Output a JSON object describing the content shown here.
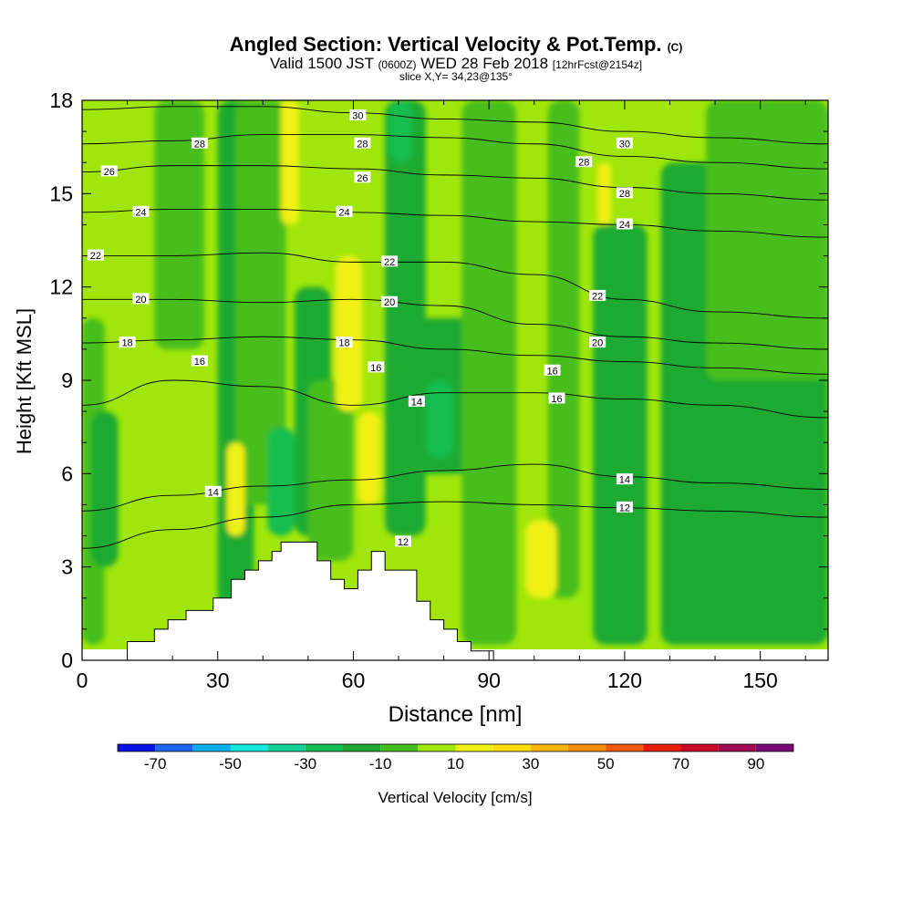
{
  "header": {
    "title": "Angled Section: Vertical Velocity & Pot.Temp.",
    "title_unit": "(C)",
    "valid_main": "Valid 1500 JST",
    "valid_utc": "(0600Z)",
    "valid_date": "WED 28 Feb 2018",
    "valid_fcst": "[12hrFcst@2154z]",
    "slice": "slice X,Y= 34,23@135°"
  },
  "chart_data": {
    "type": "heatmap",
    "xlabel": "Distance [nm]",
    "ylabel": "Height [Kft MSL]",
    "xlim": [
      0,
      165
    ],
    "ylim": [
      0,
      18
    ],
    "x_ticks": [
      0,
      30,
      60,
      90,
      120,
      150
    ],
    "y_ticks": [
      0,
      3,
      6,
      9,
      12,
      15,
      18
    ],
    "colorbar": {
      "label": "Vertical Velocity [cm/s]",
      "tick_labels": [
        -70,
        -50,
        -30,
        -10,
        10,
        30,
        50,
        70,
        90
      ],
      "bounds": [
        -80,
        -70,
        -60,
        -50,
        -40,
        -30,
        -20,
        -10,
        0,
        10,
        20,
        30,
        40,
        50,
        60,
        70,
        80,
        90,
        100
      ],
      "colors": [
        "#0a14e6",
        "#1e64f0",
        "#0aaff0",
        "#14e6dc",
        "#14d296",
        "#14be50",
        "#1eaa32",
        "#46be1e",
        "#a0e60a",
        "#f0f014",
        "#fadc0a",
        "#fab40a",
        "#f58c0a",
        "#f05a0a",
        "#e61e0a",
        "#c80a28",
        "#a00a50",
        "#780a78"
      ]
    },
    "background_velocity": 5,
    "velocity_cells": [
      {
        "x": [
          0,
          5
        ],
        "y": [
          0.5,
          11
        ],
        "v": -5
      },
      {
        "x": [
          2,
          8
        ],
        "y": [
          3,
          8
        ],
        "v": -15
      },
      {
        "x": [
          16,
          27
        ],
        "y": [
          10,
          18
        ],
        "v": -5
      },
      {
        "x": [
          30,
          38
        ],
        "y": [
          0.5,
          18
        ],
        "v": -15
      },
      {
        "x": [
          34,
          45
        ],
        "y": [
          5,
          18
        ],
        "v": -5
      },
      {
        "x": [
          41,
          47
        ],
        "y": [
          4,
          7.5
        ],
        "v": -25
      },
      {
        "x": [
          47,
          55
        ],
        "y": [
          4,
          12
        ],
        "v": -15
      },
      {
        "x": [
          50,
          60
        ],
        "y": [
          3.2,
          9
        ],
        "v": -5
      },
      {
        "x": [
          67,
          76
        ],
        "y": [
          4,
          18
        ],
        "v": -15
      },
      {
        "x": [
          68,
          73
        ],
        "y": [
          16,
          18
        ],
        "v": -25
      },
      {
        "x": [
          74,
          88
        ],
        "y": [
          6,
          11
        ],
        "v": -15
      },
      {
        "x": [
          76,
          82
        ],
        "y": [
          6.5,
          9
        ],
        "v": -25
      },
      {
        "x": [
          84,
          96
        ],
        "y": [
          0.5,
          18
        ],
        "v": -5
      },
      {
        "x": [
          103,
          110
        ],
        "y": [
          2,
          18
        ],
        "v": -5
      },
      {
        "x": [
          113,
          125
        ],
        "y": [
          0.5,
          14
        ],
        "v": -15
      },
      {
        "x": [
          128,
          165
        ],
        "y": [
          0.5,
          16
        ],
        "v": -15
      },
      {
        "x": [
          138,
          165
        ],
        "y": [
          9,
          18
        ],
        "v": -5
      },
      {
        "x": [
          32,
          36
        ],
        "y": [
          4,
          7
        ],
        "v": 15
      },
      {
        "x": [
          44,
          47
        ],
        "y": [
          15,
          18
        ],
        "v": 25
      },
      {
        "x": [
          44,
          48
        ],
        "y": [
          14,
          18
        ],
        "v": 15
      },
      {
        "x": [
          56,
          62
        ],
        "y": [
          8,
          13
        ],
        "v": 15
      },
      {
        "x": [
          61,
          66
        ],
        "y": [
          5,
          8
        ],
        "v": 15
      },
      {
        "x": [
          98,
          105
        ],
        "y": [
          2,
          4.5
        ],
        "v": 15
      },
      {
        "x": [
          114,
          117
        ],
        "y": [
          14,
          16
        ],
        "v": 15
      }
    ],
    "theta_contours": [
      {
        "level": 12,
        "x": [
          0,
          20,
          40,
          60,
          80,
          100,
          120,
          140,
          165
        ],
        "y": [
          3.6,
          4.2,
          4.6,
          5.0,
          5.1,
          5.0,
          4.9,
          4.8,
          4.6
        ]
      },
      {
        "level": 14,
        "x": [
          0,
          20,
          40,
          60,
          80,
          100,
          120,
          140,
          165
        ],
        "y": [
          4.8,
          5.3,
          5.6,
          5.8,
          6.1,
          6.3,
          5.9,
          5.7,
          5.5
        ]
      },
      {
        "level": 16,
        "x": [
          0,
          20,
          40,
          60,
          80,
          100,
          120,
          140,
          165
        ],
        "y": [
          8.2,
          9.0,
          8.8,
          8.2,
          8.6,
          8.6,
          8.4,
          8.2,
          7.8
        ]
      },
      {
        "level": 18,
        "x": [
          0,
          20,
          40,
          60,
          80,
          100,
          120,
          140,
          165
        ],
        "y": [
          10.2,
          10.3,
          10.4,
          10.3,
          10.0,
          9.8,
          9.6,
          9.4,
          9.2
        ]
      },
      {
        "level": 20,
        "x": [
          0,
          20,
          40,
          60,
          80,
          100,
          120,
          140,
          165
        ],
        "y": [
          11.6,
          11.6,
          11.5,
          11.6,
          11.4,
          10.8,
          10.4,
          10.2,
          10.0
        ]
      },
      {
        "level": 22,
        "x": [
          0,
          20,
          40,
          60,
          80,
          100,
          120,
          140,
          165
        ],
        "y": [
          13.0,
          13.0,
          13.1,
          12.8,
          12.8,
          12.4,
          11.6,
          11.2,
          11.0
        ]
      },
      {
        "level": 24,
        "x": [
          0,
          20,
          40,
          60,
          80,
          100,
          120,
          140,
          165
        ],
        "y": [
          14.4,
          14.5,
          14.5,
          14.4,
          14.3,
          14.1,
          14.0,
          13.8,
          13.6
        ]
      },
      {
        "level": 26,
        "x": [
          0,
          20,
          40,
          60,
          80,
          100,
          120,
          140,
          165
        ],
        "y": [
          15.7,
          15.9,
          15.9,
          15.8,
          15.6,
          15.5,
          15.2,
          15.0,
          14.8
        ]
      },
      {
        "level": 28,
        "x": [
          0,
          20,
          40,
          60,
          80,
          100,
          120,
          140,
          165
        ],
        "y": [
          16.6,
          16.7,
          16.9,
          16.9,
          16.8,
          16.6,
          16.2,
          16.0,
          15.8
        ]
      },
      {
        "level": 30,
        "x": [
          0,
          20,
          40,
          60,
          80,
          100,
          120,
          140,
          165
        ],
        "y": [
          17.7,
          17.8,
          17.8,
          17.6,
          17.4,
          17.3,
          17.0,
          16.8,
          16.6
        ]
      }
    ],
    "contour_labels": [
      {
        "text": "30",
        "x": 61,
        "y": 17.5
      },
      {
        "text": "30",
        "x": 120,
        "y": 16.6
      },
      {
        "text": "28",
        "x": 26,
        "y": 16.6
      },
      {
        "text": "28",
        "x": 62,
        "y": 16.6
      },
      {
        "text": "28",
        "x": 111,
        "y": 16.0
      },
      {
        "text": "28",
        "x": 120,
        "y": 15.0
      },
      {
        "text": "26",
        "x": 6,
        "y": 15.7
      },
      {
        "text": "26",
        "x": 62,
        "y": 15.5
      },
      {
        "text": "24",
        "x": 13,
        "y": 14.4
      },
      {
        "text": "24",
        "x": 58,
        "y": 14.4
      },
      {
        "text": "24",
        "x": 120,
        "y": 14.0
      },
      {
        "text": "22",
        "x": 3,
        "y": 13.0
      },
      {
        "text": "22",
        "x": 68,
        "y": 12.8
      },
      {
        "text": "22",
        "x": 114,
        "y": 11.7
      },
      {
        "text": "20",
        "x": 13,
        "y": 11.6
      },
      {
        "text": "20",
        "x": 68,
        "y": 11.5
      },
      {
        "text": "20",
        "x": 114,
        "y": 10.2
      },
      {
        "text": "18",
        "x": 10,
        "y": 10.2
      },
      {
        "text": "18",
        "x": 58,
        "y": 10.2
      },
      {
        "text": "16",
        "x": 26,
        "y": 9.6
      },
      {
        "text": "16",
        "x": 65,
        "y": 9.4
      },
      {
        "text": "16",
        "x": 104,
        "y": 9.3
      },
      {
        "text": "16",
        "x": 105,
        "y": 8.4
      },
      {
        "text": "14",
        "x": 74,
        "y": 8.3
      },
      {
        "text": "14",
        "x": 29,
        "y": 5.4
      },
      {
        "text": "14",
        "x": 120,
        "y": 5.8
      },
      {
        "text": "12",
        "x": 120,
        "y": 4.9
      },
      {
        "text": "12",
        "x": 71,
        "y": 3.8
      }
    ],
    "terrain": {
      "x": [
        0,
        10,
        10,
        16,
        16,
        19,
        19,
        23,
        23,
        29,
        29,
        33,
        33,
        36,
        36,
        39,
        39,
        42,
        42,
        44,
        44,
        52,
        52,
        55,
        55,
        58,
        58,
        61,
        61,
        64,
        64,
        67,
        67,
        74,
        74,
        77,
        77,
        80,
        80,
        83,
        83,
        86,
        86,
        91,
        91,
        165
      ],
      "y": [
        0,
        0,
        0.6,
        0.6,
        1.0,
        1.0,
        1.3,
        1.3,
        1.6,
        1.6,
        2.0,
        2.0,
        2.6,
        2.6,
        2.9,
        2.9,
        3.2,
        3.2,
        3.5,
        3.5,
        3.8,
        3.8,
        3.2,
        3.2,
        2.6,
        2.6,
        2.3,
        2.3,
        2.9,
        2.9,
        3.5,
        3.5,
        2.9,
        2.9,
        1.9,
        1.9,
        1.3,
        1.3,
        1.0,
        1.0,
        0.6,
        0.6,
        0.3,
        0.3,
        0,
        0
      ]
    }
  }
}
